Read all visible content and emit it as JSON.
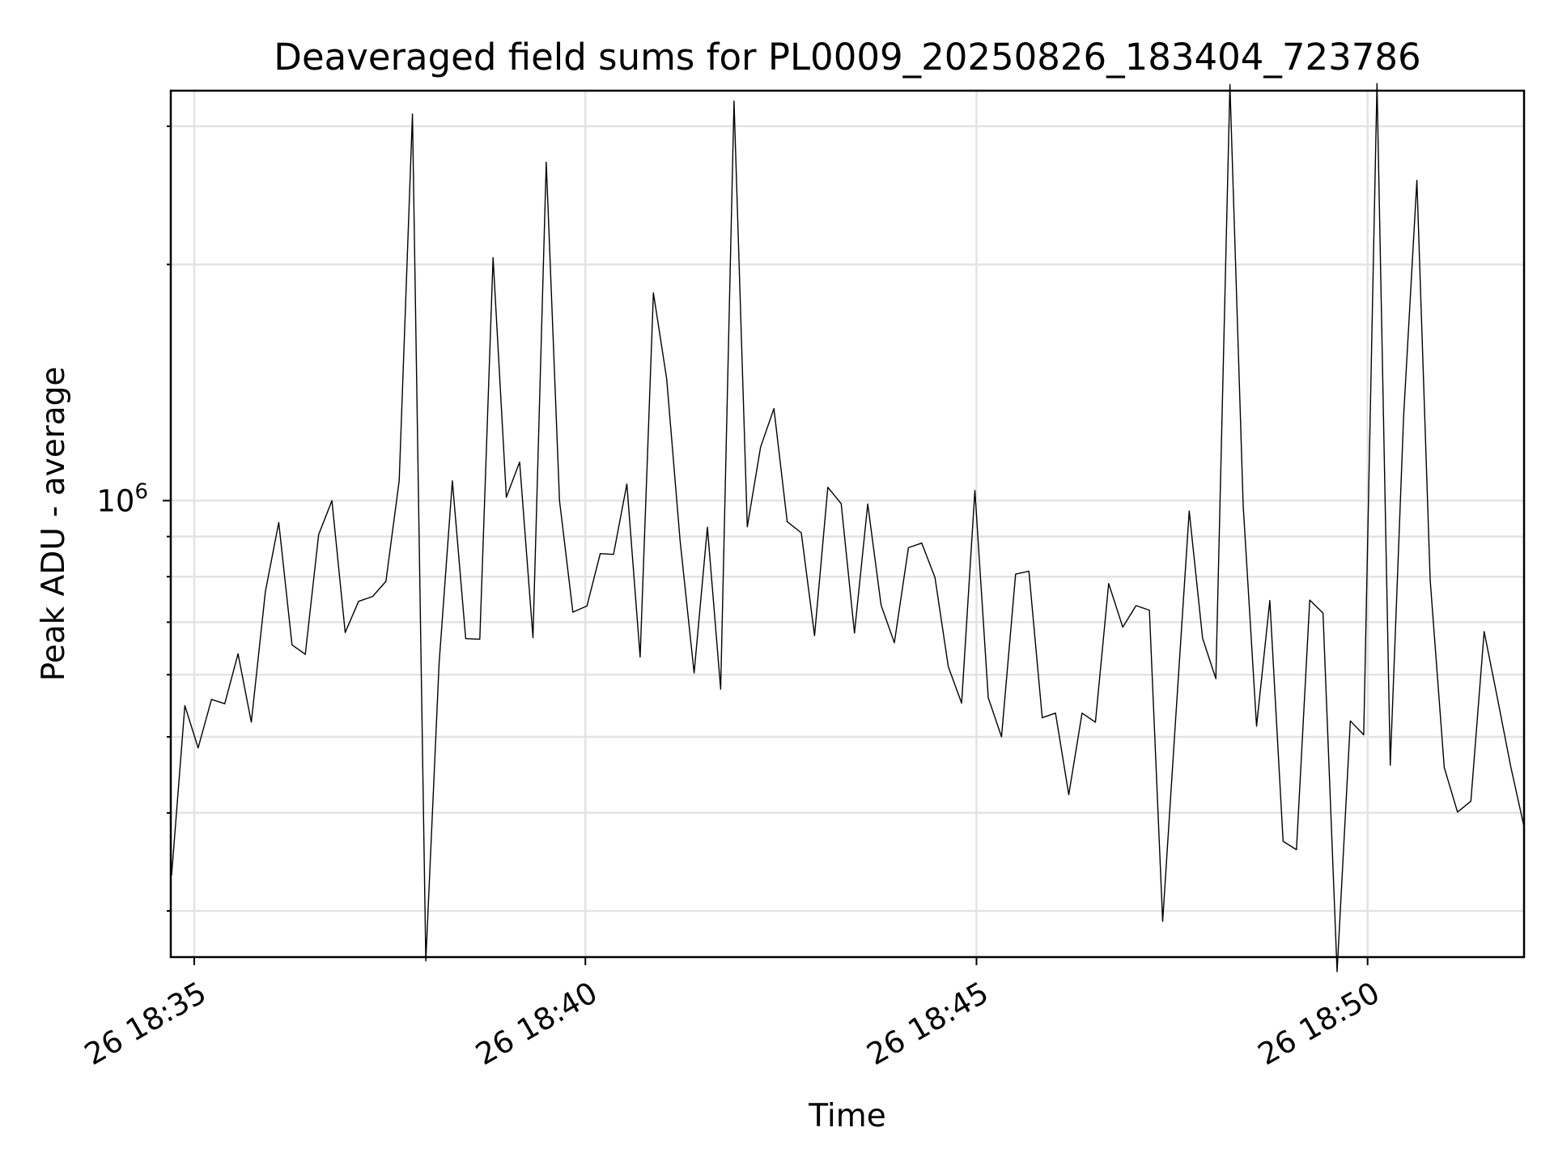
{
  "chart_data": {
    "type": "line",
    "title": "Deaveraged field sums for PL0009_20250826_183404_723786",
    "xlabel": "Time",
    "ylabel": "Peak ADU - average",
    "y_scale": "log",
    "grid": true,
    "x_ticks": [
      "26 18:35",
      "26 18:40",
      "26 18:45",
      "26 18:50"
    ],
    "x_tick_minutes": [
      35,
      40,
      45,
      50
    ],
    "y_major_ticks": [
      {
        "value": 1000000,
        "base": "10",
        "exp": "6"
      }
    ],
    "xlim_minutes": [
      34.7,
      52.0
    ],
    "ylim": [
      262000,
      3330000
    ],
    "x_minutes": [
      34.71,
      34.88,
      35.05,
      35.22,
      35.39,
      35.56,
      35.73,
      35.91,
      36.08,
      36.25,
      36.42,
      36.59,
      36.76,
      36.93,
      37.1,
      37.28,
      37.45,
      37.62,
      37.79,
      37.96,
      38.13,
      38.3,
      38.47,
      38.65,
      38.82,
      38.99,
      39.16,
      39.33,
      39.5,
      39.67,
      39.84,
      40.02,
      40.19,
      40.36,
      40.53,
      40.7,
      40.87,
      41.04,
      41.21,
      41.39,
      41.56,
      41.73,
      41.9,
      42.07,
      42.24,
      42.41,
      42.58,
      42.76,
      42.93,
      43.1,
      43.27,
      43.44,
      43.61,
      43.78,
      43.95,
      44.13,
      44.3,
      44.47,
      44.64,
      44.81,
      44.98,
      45.15,
      45.32,
      45.5,
      45.67,
      45.84,
      46.01,
      46.18,
      46.35,
      46.52,
      46.69,
      46.87,
      47.04,
      47.21,
      47.38,
      47.55,
      47.72,
      47.89,
      48.06,
      48.24,
      48.41,
      48.58,
      48.75,
      48.92,
      49.09,
      49.26,
      49.43,
      49.61,
      49.78,
      49.95,
      50.12,
      50.29,
      50.46,
      50.63,
      50.8,
      50.98,
      51.15,
      51.32,
      51.49,
      51.66,
      51.83,
      52.0
    ],
    "y_values": [
      333000,
      548000,
      484000,
      558000,
      551000,
      638000,
      522000,
      766000,
      938000,
      655000,
      637000,
      905000,
      1000000,
      679000,
      744000,
      755000,
      789000,
      1060000,
      3110000,
      259000,
      620000,
      1060000,
      667000,
      666000,
      2040000,
      1010000,
      1120000,
      669000,
      2700000,
      1000000,
      721000,
      734000,
      856000,
      854000,
      1050000,
      632000,
      1840000,
      1430000,
      891000,
      603000,
      925000,
      575000,
      3230000,
      926000,
      1170000,
      1310000,
      940000,
      910000,
      673000,
      1040000,
      991000,
      678000,
      990000,
      736000,
      659000,
      871000,
      883000,
      798000,
      614000,
      552000,
      1030000,
      561000,
      500000,
      806000,
      813000,
      529000,
      536000,
      422000,
      536000,
      522000,
      784000,
      690000,
      735000,
      725000,
      291000,
      534000,
      970000,
      668000,
      593000,
      3390000,
      985000,
      516000,
      746000,
      368000,
      359000,
      747000,
      719000,
      251000,
      524000,
      503000,
      3400000,
      460000,
      1280000,
      2560000,
      793000,
      457000,
      401000,
      414000,
      681000,
      560000,
      458000,
      384000
    ],
    "series_color": "#000000",
    "grid_color": "#e3e3e3"
  }
}
